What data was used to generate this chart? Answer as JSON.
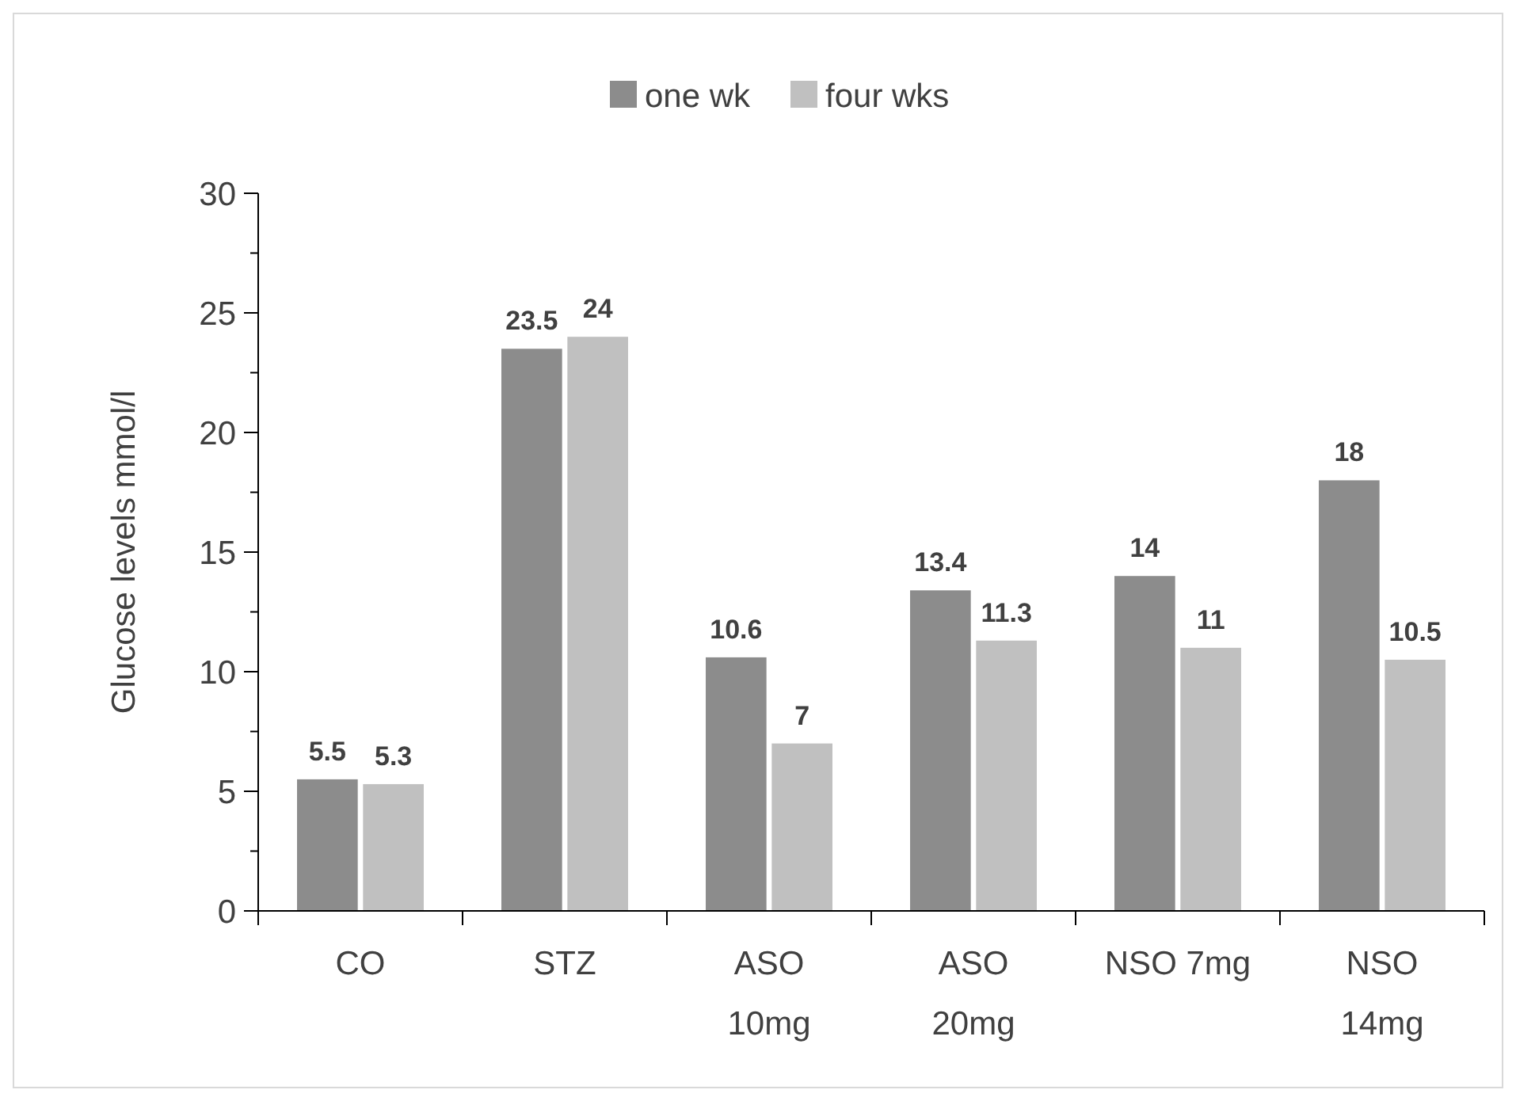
{
  "chart_data": {
    "type": "bar",
    "ylabel": "Glucose levels mmol/l",
    "categories": [
      "CO",
      "STZ",
      "ASO 10mg",
      "ASO 20mg",
      "NSO 7mg",
      "NSO 14mg"
    ],
    "series": [
      {
        "name": "one wk",
        "color": "#8c8c8c",
        "values": [
          5.5,
          23.5,
          10.6,
          13.4,
          14,
          18
        ]
      },
      {
        "name": "four wks",
        "color": "#c0c0c0",
        "values": [
          5.3,
          24,
          7,
          11.3,
          11,
          10.5
        ]
      }
    ],
    "ylim": [
      0,
      30
    ],
    "yticks": [
      0,
      {
        "value": 2.5,
        "label": null
      },
      5,
      {
        "value": 7.5,
        "label": null
      },
      10,
      {
        "value": 12.5,
        "label": null
      },
      15,
      {
        "value": 17.5,
        "label": null
      },
      20,
      {
        "value": 22.5,
        "label": null
      },
      25,
      {
        "value": 27.5,
        "label": null
      },
      30
    ],
    "data_labels": true,
    "legend": "top",
    "grid": false
  }
}
